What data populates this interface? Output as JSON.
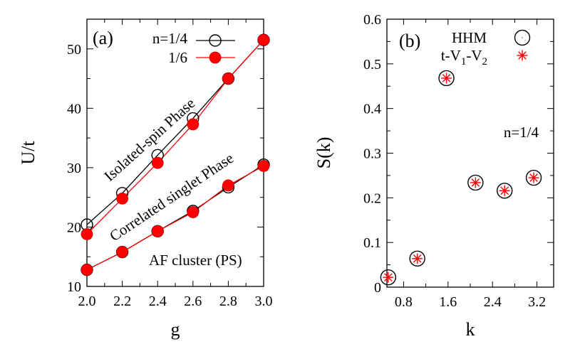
{
  "chart_data": [
    {
      "type": "line",
      "panel_label": "(a)",
      "xlabel": "g",
      "ylabel": "U/t",
      "xlim": [
        2.0,
        3.0
      ],
      "ylim": [
        10,
        55
      ],
      "xticks": [
        "2.0",
        "2.2",
        "2.4",
        "2.6",
        "2.8",
        "3.0"
      ],
      "yticks": [
        "10",
        "20",
        "30",
        "40",
        "50"
      ],
      "x": [
        2.0,
        2.2,
        2.4,
        2.6,
        2.8,
        3.0
      ],
      "series": [
        {
          "name": "n=1/4",
          "boundary": "upper",
          "marker": "open-circle",
          "color": "#000000",
          "values": [
            20.4,
            25.7,
            32.1,
            38.3,
            45.0,
            51.5
          ]
        },
        {
          "name": "1/6",
          "boundary": "upper",
          "marker": "filled-circle",
          "color": "#ff0000",
          "values": [
            18.8,
            24.8,
            30.8,
            37.3,
            45.0,
            51.5
          ]
        },
        {
          "name": "n=1/4",
          "boundary": "lower",
          "marker": "open-circle",
          "color": "#000000",
          "values": [
            12.8,
            15.8,
            19.3,
            22.7,
            26.7,
            30.5
          ]
        },
        {
          "name": "1/6",
          "boundary": "lower",
          "marker": "filled-circle",
          "color": "#ff0000",
          "values": [
            12.8,
            15.8,
            19.3,
            22.5,
            27.0,
            30.3
          ]
        }
      ],
      "legend": {
        "placement": "top-right",
        "entries": [
          "n=1/4",
          "1/6"
        ]
      },
      "annotations": [
        "Isolated-spin Phase",
        "Correlated singlet Phase",
        "AF cluster (PS)"
      ],
      "grid": false
    },
    {
      "type": "scatter",
      "panel_label": "(b)",
      "xlabel": "k",
      "ylabel": "S(k)",
      "xlim": [
        0.5,
        3.5
      ],
      "ylim": [
        0,
        0.6
      ],
      "xticks": [
        "0.8",
        "1.6",
        "2.4",
        "3.2"
      ],
      "yticks": [
        "0",
        "0.1",
        "0.2",
        "0.3",
        "0.4",
        "0.5",
        "0.6"
      ],
      "x": [
        0.524,
        1.047,
        1.571,
        2.094,
        2.618,
        3.142
      ],
      "series": [
        {
          "name": "HHM",
          "marker": "open-circle",
          "color": "#000000",
          "values": [
            0.022,
            0.064,
            0.468,
            0.234,
            0.216,
            0.245
          ]
        },
        {
          "name_parts": [
            "t-V",
            "1",
            "-V",
            "2"
          ],
          "marker": "asterisk",
          "color": "#ff0000",
          "values": [
            0.022,
            0.064,
            0.468,
            0.234,
            0.216,
            0.245
          ]
        }
      ],
      "legend": {
        "placement": "top-right"
      },
      "annotations": [
        "n=1/4"
      ],
      "grid": false
    }
  ]
}
